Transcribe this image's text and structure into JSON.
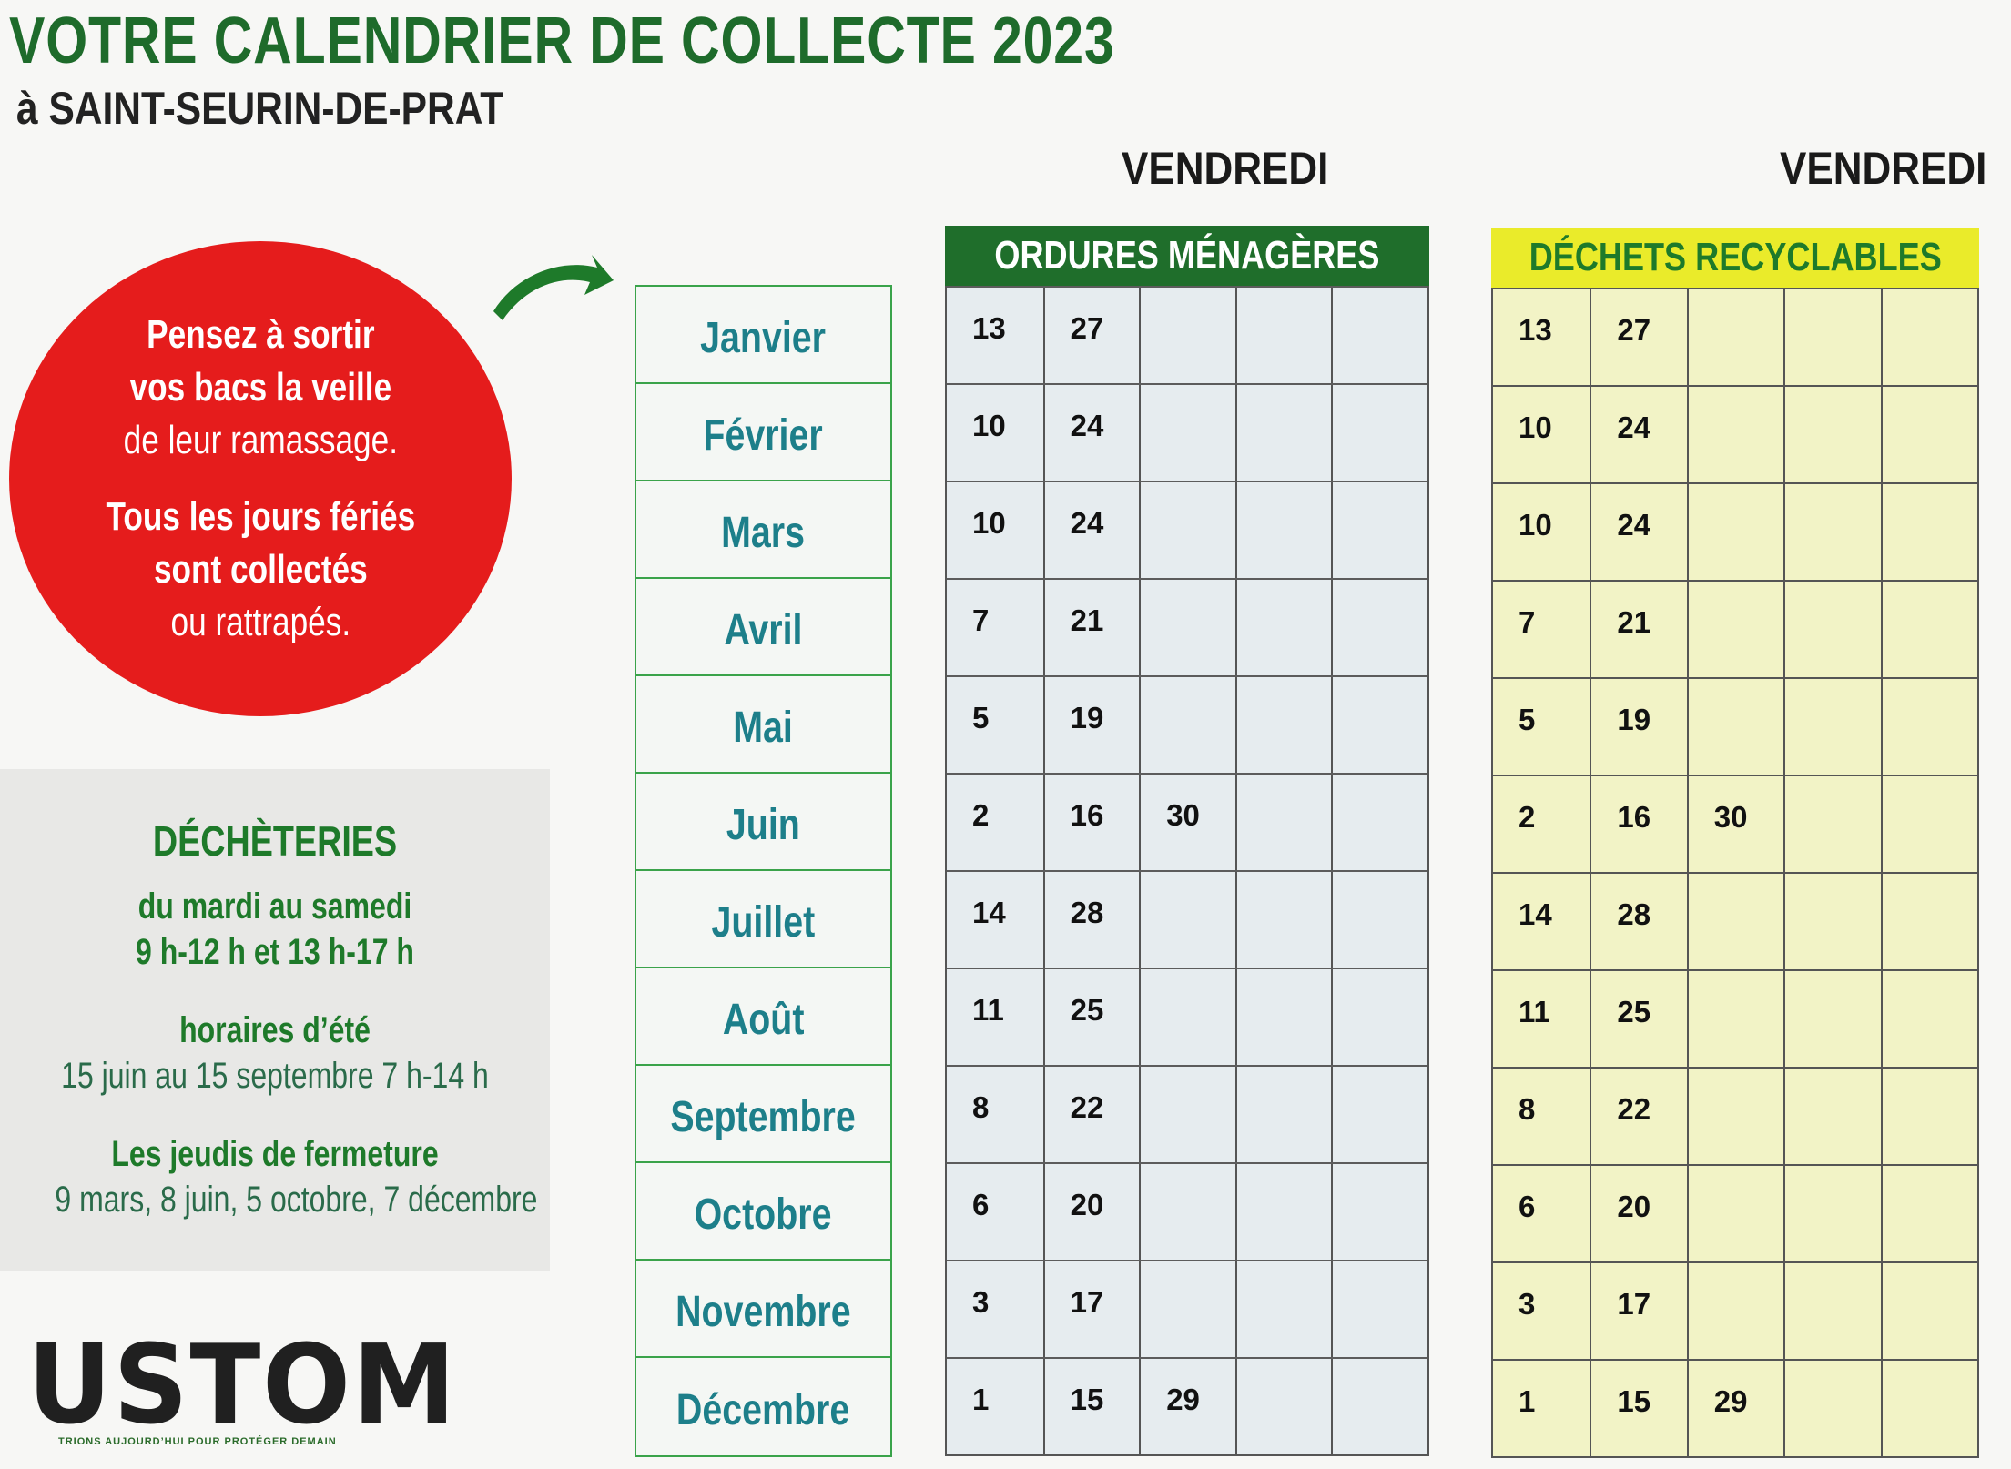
{
  "header": {
    "title": "VOTRE CALENDRIER DE COLLECTE 2023",
    "subtitle": "à SAINT-SEURIN-DE-PRAT"
  },
  "day_labels": {
    "om": "VENDREDI",
    "recyclables": "VENDREDI"
  },
  "reminder": {
    "line1_bold": "Pensez à sortir",
    "line2_bold": "vos bacs la veille",
    "line3": "de leur ramassage.",
    "line4_bold": "Tous les jours fériés",
    "line5_bold": "sont collectés",
    "line6": "ou rattrapés."
  },
  "decheteries": {
    "title": "DÉCHÈTERIES",
    "days": "du mardi au samedi",
    "hours": "9 h-12 h et 13 h-17 h",
    "summer_title": "horaires d’été",
    "summer_hours": "15 juin au 15 septembre 7 h-14 h",
    "closing_title": "Les jeudis de fermeture",
    "closing_dates": "9 mars, 8 juin, 5 octobre, 7 décembre"
  },
  "logo": {
    "name": "USTOM",
    "tagline": "TRIONS AUJOURD’HUI POUR PROTÉGER DEMAIN"
  },
  "months": [
    "Janvier",
    "Février",
    "Mars",
    "Avril",
    "Mai",
    "Juin",
    "Juillet",
    "Août",
    "Septembre",
    "Octobre",
    "Novembre",
    "Décembre"
  ],
  "ordures": {
    "header": "ORDURES MÉNAGÈRES",
    "rows": [
      [
        "13",
        "27",
        "",
        "",
        ""
      ],
      [
        "10",
        "24",
        "",
        "",
        ""
      ],
      [
        "10",
        "24",
        "",
        "",
        ""
      ],
      [
        "7",
        "21",
        "",
        "",
        ""
      ],
      [
        "5",
        "19",
        "",
        "",
        ""
      ],
      [
        "2",
        "16",
        "30",
        "",
        ""
      ],
      [
        "14",
        "28",
        "",
        "",
        ""
      ],
      [
        "11",
        "25",
        "",
        "",
        ""
      ],
      [
        "8",
        "22",
        "",
        "",
        ""
      ],
      [
        "6",
        "20",
        "",
        "",
        ""
      ],
      [
        "3",
        "17",
        "",
        "",
        ""
      ],
      [
        "1",
        "15",
        "29",
        "",
        ""
      ]
    ]
  },
  "recyclables": {
    "header": "DÉCHETS RECYCLABLES",
    "rows": [
      [
        "13",
        "27",
        "",
        "",
        ""
      ],
      [
        "10",
        "24",
        "",
        "",
        ""
      ],
      [
        "10",
        "24",
        "",
        "",
        ""
      ],
      [
        "7",
        "21",
        "",
        "",
        ""
      ],
      [
        "5",
        "19",
        "",
        "",
        ""
      ],
      [
        "2",
        "16",
        "30",
        "",
        ""
      ],
      [
        "14",
        "28",
        "",
        "",
        ""
      ],
      [
        "11",
        "25",
        "",
        "",
        ""
      ],
      [
        "8",
        "22",
        "",
        "",
        ""
      ],
      [
        "6",
        "20",
        "",
        "",
        ""
      ],
      [
        "3",
        "17",
        "",
        "",
        ""
      ],
      [
        "1",
        "15",
        "29",
        "",
        ""
      ]
    ]
  },
  "colors": {
    "title_green": "#1e6b2b",
    "circle_red": "#e51c1c",
    "om_header": "#1f6e2b",
    "rec_header": "#eaeb2a",
    "month_text": "#1d7f8a"
  }
}
